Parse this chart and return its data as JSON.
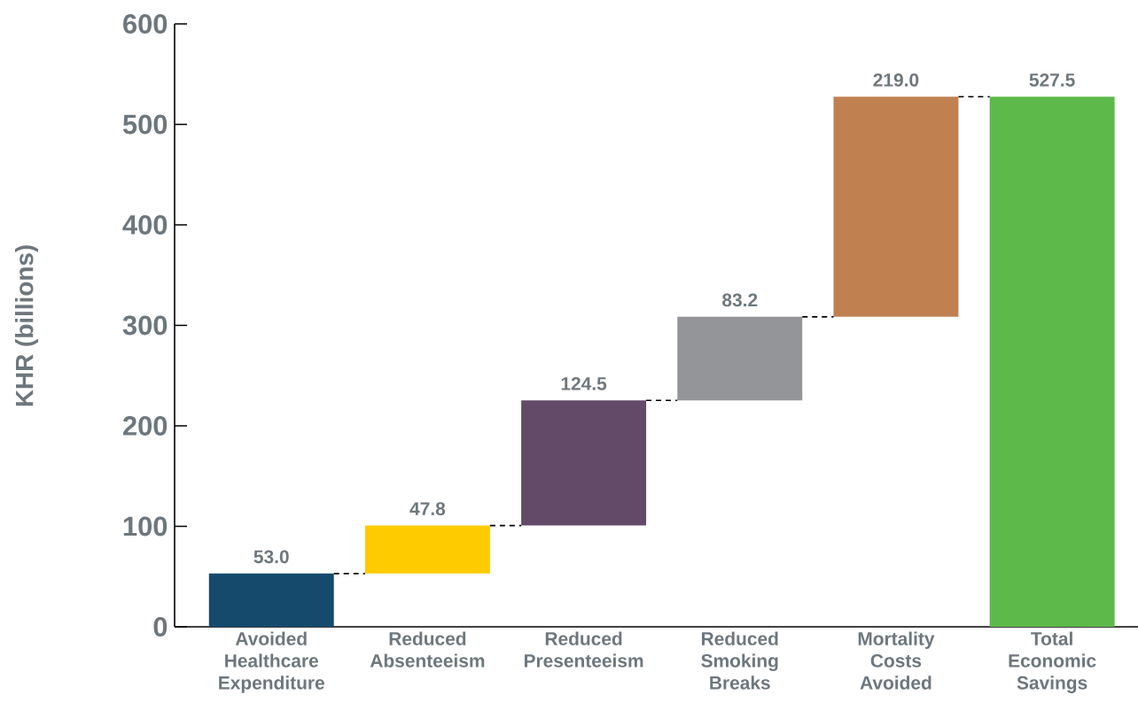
{
  "chart_data": {
    "type": "bar",
    "ylabel": "KHR (billions)",
    "categories": [
      "Avoided Healthcare Expenditure",
      "Reduced Absenteeism",
      "Reduced Presenteeism",
      "Reduced Smoking Breaks",
      "Mortality Costs Avoided",
      "Total Economic Savings"
    ],
    "values": [
      53.0,
      47.8,
      124.5,
      83.2,
      219.0,
      527.5
    ],
    "base": [
      0,
      53.0,
      100.8,
      225.3,
      308.5,
      0
    ],
    "colors": [
      "#154a6d",
      "#fecb00",
      "#634a68",
      "#949598",
      "#c08050",
      "#5db94a"
    ],
    "value_labels": [
      "53.0",
      "47.8",
      "124.5",
      "83.2",
      "219.0",
      "527.5"
    ],
    "ylim": [
      0,
      600
    ],
    "yticks": [
      0,
      100,
      200,
      300,
      400,
      500,
      600
    ]
  }
}
